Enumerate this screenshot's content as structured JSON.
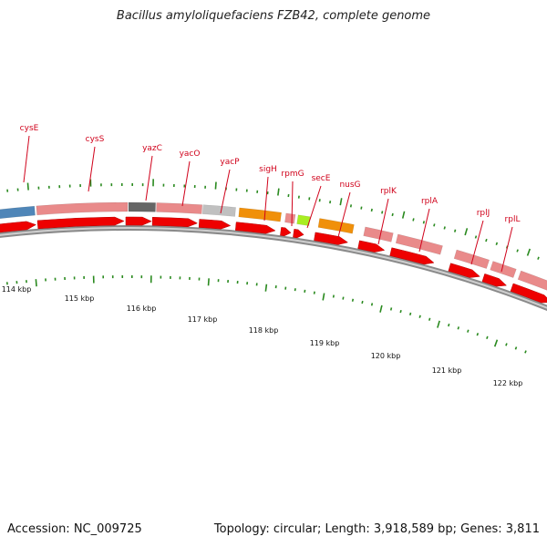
{
  "title": "Bacillus amyloliquefaciens FZB42, complete genome",
  "footer": {
    "accession": "Accession: NC_009725",
    "summary": "Topology: circular; Length: 3,918,589 bp; Genes: 3,811"
  },
  "colors": {
    "backbone": "#888888",
    "cds_arrow": "#ee0000",
    "label": "#d0021b",
    "tick": "#2a8a1f"
  },
  "gene_labels": [
    "cysE",
    "cysS",
    "yazC",
    "yacO",
    "yacP",
    "sigH",
    "rpmG",
    "secE",
    "nusG",
    "rplK",
    "rplA",
    "rplJ",
    "rplL"
  ],
  "kbp_labels": [
    "114 kbp",
    "115 kbp",
    "116 kbp",
    "117 kbp",
    "118 kbp",
    "119 kbp",
    "120 kbp",
    "121 kbp",
    "122 kbp"
  ]
}
